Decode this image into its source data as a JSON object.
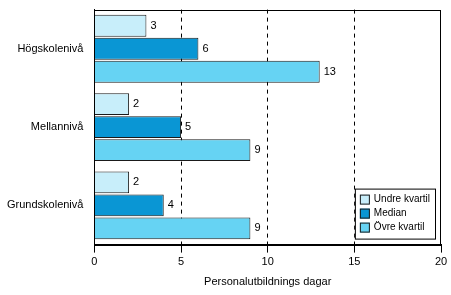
{
  "chart_data": {
    "type": "bar",
    "orientation": "horizontal",
    "x_label": "Personalutbildnings dagar",
    "categories": [
      "Högskolenivå",
      "Mellannivå",
      "Grundskolenivå"
    ],
    "series": [
      {
        "name": "Undre kvartil",
        "color": "#c8eefa",
        "values": [
          3,
          2,
          2
        ]
      },
      {
        "name": "Median",
        "color": "#0a96d4",
        "values": [
          6,
          5,
          4
        ]
      },
      {
        "name": "Övre kvartil",
        "color": "#66d3f3",
        "values": [
          13,
          9,
          9
        ]
      }
    ],
    "xlim": [
      0,
      20
    ],
    "xticks": [
      0,
      5,
      10,
      15,
      20
    ],
    "grid": true,
    "legend": "lower right",
    "data_labels": true
  }
}
